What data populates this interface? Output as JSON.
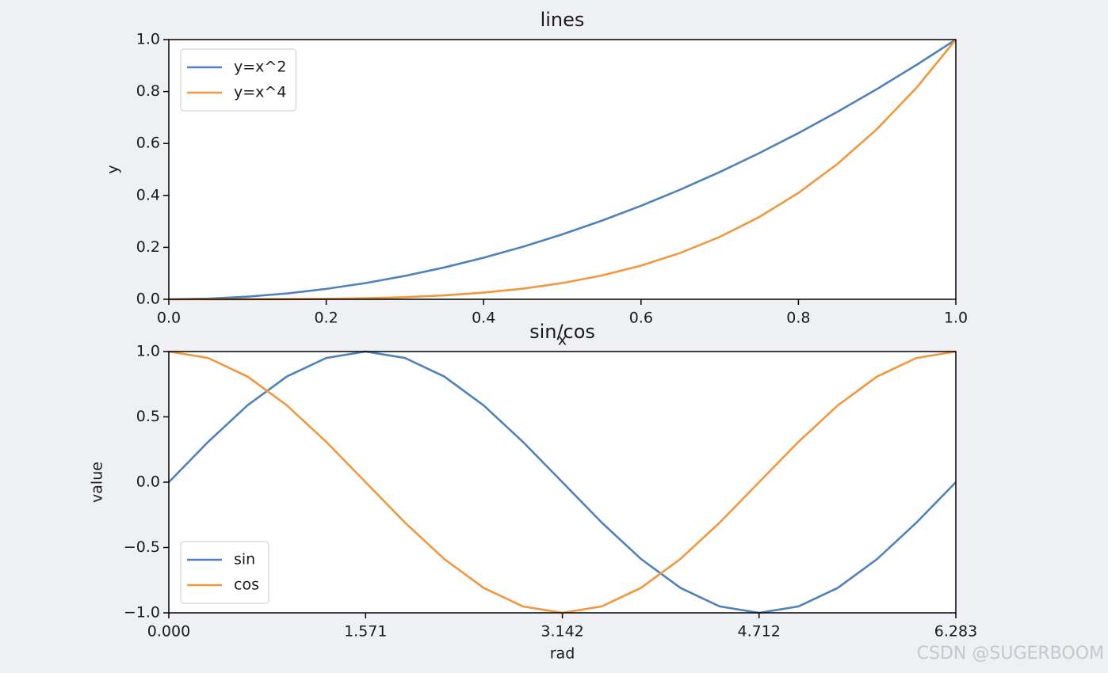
{
  "chart_data": [
    {
      "type": "line",
      "title": "lines",
      "xlabel": "x",
      "ylabel": "y",
      "x": [
        0,
        0.05,
        0.1,
        0.15,
        0.2,
        0.25,
        0.3,
        0.35,
        0.4,
        0.45,
        0.5,
        0.55,
        0.6,
        0.65,
        0.7,
        0.75,
        0.8,
        0.85,
        0.9,
        0.95,
        1
      ],
      "series": [
        {
          "name": "y=x^2",
          "color": "#4f81ba",
          "values": [
            0,
            0.0025,
            0.01,
            0.0225,
            0.04,
            0.0625,
            0.09,
            0.1225,
            0.16,
            0.2025,
            0.25,
            0.3025,
            0.36,
            0.4225,
            0.49,
            0.5625,
            0.64,
            0.7225,
            0.81,
            0.9025,
            1
          ]
        },
        {
          "name": "y=x^4",
          "color": "#f0973f",
          "values": [
            0,
            0,
            0.0001,
            0.0005,
            0.0016,
            0.0039,
            0.0081,
            0.015,
            0.0256,
            0.041,
            0.0625,
            0.0915,
            0.1296,
            0.1785,
            0.2401,
            0.3164,
            0.4096,
            0.522,
            0.6561,
            0.8145,
            1
          ]
        }
      ],
      "xlim": [
        0,
        1
      ],
      "ylim": [
        0,
        1
      ],
      "xticks": [
        {
          "value": 0,
          "label": "0.0"
        },
        0.2,
        0.4,
        0.6,
        0.8,
        {
          "value": 1,
          "label": "1.0"
        }
      ],
      "yticks": [
        {
          "value": 0,
          "label": "0.0"
        },
        0.2,
        0.4,
        0.6,
        0.8,
        {
          "value": 1,
          "label": "1.0"
        }
      ],
      "legend": "upper left"
    },
    {
      "type": "line",
      "title": "sin/cos",
      "xlabel": "rad",
      "ylabel": "value",
      "x": [
        0,
        0.314,
        0.628,
        0.942,
        1.257,
        1.571,
        1.885,
        2.199,
        2.513,
        2.827,
        3.142,
        3.456,
        3.77,
        4.084,
        4.398,
        4.712,
        5.027,
        5.341,
        5.655,
        5.969,
        6.283
      ],
      "series": [
        {
          "name": "sin",
          "color": "#4f81ba",
          "values": [
            0,
            0.309,
            0.588,
            0.809,
            0.951,
            1,
            0.951,
            0.809,
            0.588,
            0.309,
            0,
            -0.309,
            -0.588,
            -0.809,
            -0.951,
            -1,
            -0.951,
            -0.809,
            -0.588,
            -0.309,
            0
          ]
        },
        {
          "name": "cos",
          "color": "#f0973f",
          "values": [
            1,
            0.951,
            0.809,
            0.588,
            0.309,
            0,
            -0.309,
            -0.588,
            -0.809,
            -0.951,
            -1,
            -0.951,
            -0.809,
            -0.588,
            -0.309,
            0,
            0.309,
            0.588,
            0.809,
            0.951,
            1
          ]
        }
      ],
      "xlim": [
        0,
        6.283
      ],
      "ylim": [
        -1,
        1
      ],
      "xticks": [
        {
          "value": 0,
          "label": "0.000"
        },
        1.571,
        3.142,
        4.712,
        6.283
      ],
      "yticks": [
        {
          "value": -1,
          "label": "−1.0"
        },
        {
          "value": -0.5,
          "label": "−0.5"
        },
        {
          "value": 0,
          "label": "0.0"
        },
        {
          "value": 0.5,
          "label": "0.5"
        },
        {
          "value": 1,
          "label": "1.0"
        }
      ],
      "legend": "lower left"
    }
  ],
  "watermark": "CSDN @SUGERBOOM"
}
